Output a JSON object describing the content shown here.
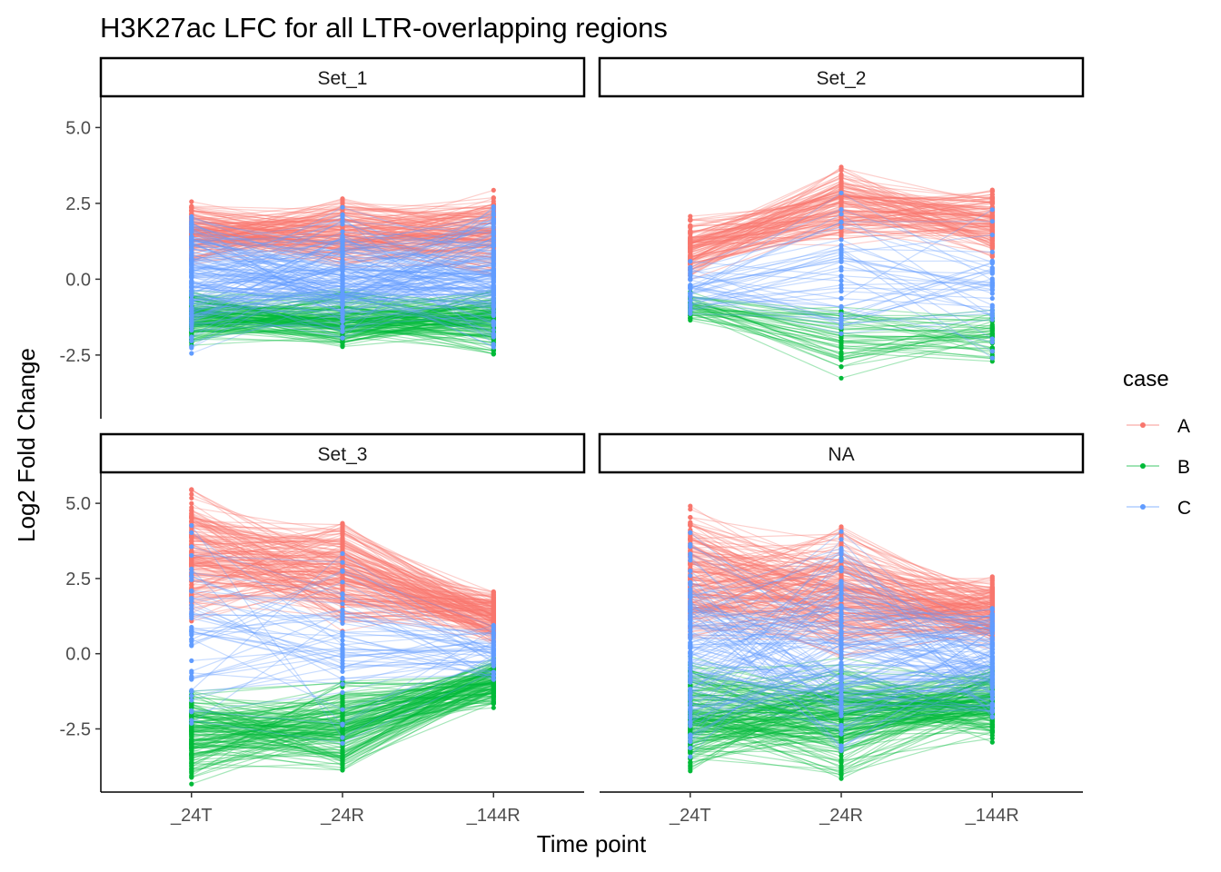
{
  "colors": {
    "A": "#F8766D",
    "B": "#00BA38",
    "C": "#619CFF"
  },
  "chart_data": {
    "type": "line",
    "title": "H3K27ac LFC  for all LTR-overlapping regions",
    "xlabel": "Time point",
    "ylabel": "Log2 Fold Change",
    "categories": [
      "_24T",
      "_24R",
      "_144R"
    ],
    "y_ticks": [
      "5.0",
      "2.5",
      "0.0",
      "-2.5"
    ],
    "y_tick_values": [
      5.0,
      2.5,
      0.0,
      -2.5
    ],
    "ylim": [
      -4.6,
      6.0
    ],
    "legend": {
      "title": "case",
      "entries": [
        "A",
        "B",
        "C"
      ],
      "position": "right"
    },
    "grid": false,
    "facets": [
      {
        "label": "Set_1",
        "series": [
          {
            "case": "A",
            "count": 150,
            "ranges": [
              [
                0.3,
                2.7
              ],
              [
                0.2,
                2.8
              ],
              [
                0.0,
                3.0
              ]
            ]
          },
          {
            "case": "B",
            "count": 150,
            "ranges": [
              [
                -2.2,
                -0.3
              ],
              [
                -2.4,
                -0.2
              ],
              [
                -2.6,
                -0.1
              ]
            ]
          },
          {
            "case": "C",
            "count": 150,
            "ranges": [
              [
                -2.6,
                2.4
              ],
              [
                -2.5,
                2.6
              ],
              [
                -2.4,
                2.5
              ]
            ]
          }
        ]
      },
      {
        "label": "Set_2",
        "series": [
          {
            "case": "A",
            "count": 120,
            "ranges": [
              [
                -0.2,
                2.2
              ],
              [
                1.0,
                3.9
              ],
              [
                0.6,
                3.1
              ]
            ]
          },
          {
            "case": "B",
            "count": 45,
            "ranges": [
              [
                -1.5,
                -0.3
              ],
              [
                -3.4,
                -0.8
              ],
              [
                -2.9,
                -0.8
              ]
            ]
          },
          {
            "case": "C",
            "count": 40,
            "ranges": [
              [
                -1.2,
                0.8
              ],
              [
                -2.7,
                3.1
              ],
              [
                -2.9,
                2.9
              ]
            ]
          }
        ]
      },
      {
        "label": "Set_3",
        "series": [
          {
            "case": "A",
            "count": 170,
            "ranges": [
              [
                1.0,
                5.6
              ],
              [
                0.7,
                4.6
              ],
              [
                0.2,
                2.3
              ]
            ]
          },
          {
            "case": "B",
            "count": 150,
            "ranges": [
              [
                -4.4,
                -0.9
              ],
              [
                -4.0,
                -0.6
              ],
              [
                -1.9,
                -0.1
              ]
            ]
          },
          {
            "case": "C",
            "count": 50,
            "ranges": [
              [
                -3.2,
                5.1
              ],
              [
                -3.6,
                4.0
              ],
              [
                -1.0,
                1.2
              ]
            ]
          }
        ]
      },
      {
        "label": "NA",
        "series": [
          {
            "case": "A",
            "count": 180,
            "ranges": [
              [
                0.0,
                5.1
              ],
              [
                -0.5,
                4.7
              ],
              [
                0.1,
                2.7
              ]
            ]
          },
          {
            "case": "B",
            "count": 180,
            "ranges": [
              [
                -4.2,
                0.0
              ],
              [
                -4.3,
                -0.1
              ],
              [
                -3.0,
                -0.3
              ]
            ]
          },
          {
            "case": "C",
            "count": 120,
            "ranges": [
              [
                -3.8,
                4.5
              ],
              [
                -3.6,
                4.3
              ],
              [
                -2.6,
                1.8
              ]
            ]
          }
        ]
      }
    ]
  }
}
